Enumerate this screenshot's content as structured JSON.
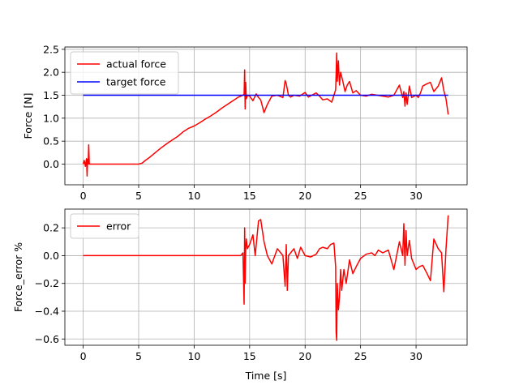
{
  "chart_data": [
    {
      "type": "line",
      "xlabel": "",
      "ylabel": "Force [N]",
      "xlim": [
        -1.65,
        34.6
      ],
      "ylim": [
        -0.45,
        2.55
      ],
      "xticks": [
        0,
        5,
        10,
        15,
        20,
        25,
        30
      ],
      "yticks": [
        0.0,
        0.5,
        1.0,
        1.5,
        2.0,
        2.5
      ],
      "xtick_labels": [
        "0",
        "5",
        "10",
        "15",
        "20",
        "25",
        "30"
      ],
      "ytick_labels": [
        "0.0",
        "0.5",
        "1.0",
        "1.5",
        "2.0",
        "2.5"
      ],
      "grid": true,
      "legend_position": "top-left",
      "series": [
        {
          "name": "actual force",
          "color": "#ff0000",
          "x": [
            0,
            0.1,
            0.2,
            0.3,
            0.35,
            0.4,
            0.45,
            0.5,
            0.55,
            0.6,
            0.7,
            1,
            2,
            3,
            4,
            5,
            5.3,
            5.6,
            6,
            6.5,
            7,
            7.5,
            8,
            8.5,
            9,
            9.5,
            10,
            10.5,
            11,
            11.5,
            12,
            12.5,
            13,
            13.5,
            14,
            14.3,
            14.5,
            14.55,
            14.6,
            14.65,
            14.7,
            14.8,
            15,
            15.3,
            15.6,
            15.8,
            16,
            16.3,
            16.6,
            17,
            17.5,
            18,
            18.2,
            18.3,
            18.5,
            18.7,
            19,
            19.5,
            20,
            20.3,
            20.6,
            21,
            21.3,
            21.6,
            22,
            22.4,
            22.6,
            22.75,
            22.8,
            22.85,
            22.9,
            23,
            23.1,
            23.2,
            23.4,
            23.6,
            23.8,
            24,
            24.3,
            24.6,
            25,
            25.5,
            26,
            26.5,
            27,
            27.5,
            28,
            28.5,
            28.8,
            28.9,
            29,
            29.1,
            29.2,
            29.4,
            29.6,
            30,
            30.2,
            30.4,
            30.6,
            31,
            31.3,
            31.6,
            32,
            32.3,
            32.5,
            32.7,
            32.9
          ],
          "y": [
            0.0,
            0.08,
            -0.05,
            0.12,
            -0.26,
            0.1,
            0.0,
            0.42,
            0.0,
            0.0,
            0.0,
            0.0,
            0.0,
            0.0,
            0.0,
            0.0,
            0.02,
            0.08,
            0.15,
            0.25,
            0.35,
            0.44,
            0.52,
            0.6,
            0.7,
            0.78,
            0.83,
            0.9,
            0.98,
            1.05,
            1.13,
            1.22,
            1.3,
            1.38,
            1.46,
            1.49,
            1.52,
            2.05,
            1.2,
            1.78,
            1.42,
            1.5,
            1.48,
            1.38,
            1.53,
            1.45,
            1.4,
            1.12,
            1.3,
            1.48,
            1.5,
            1.45,
            1.82,
            1.75,
            1.5,
            1.46,
            1.5,
            1.48,
            1.56,
            1.46,
            1.5,
            1.55,
            1.48,
            1.4,
            1.42,
            1.35,
            1.5,
            1.62,
            1.97,
            2.42,
            1.8,
            2.25,
            1.72,
            2.0,
            1.8,
            1.58,
            1.72,
            1.8,
            1.55,
            1.6,
            1.5,
            1.48,
            1.52,
            1.5,
            1.48,
            1.46,
            1.5,
            1.72,
            1.45,
            1.58,
            1.26,
            1.55,
            1.3,
            1.7,
            1.45,
            1.5,
            1.45,
            1.55,
            1.7,
            1.75,
            1.78,
            1.58,
            1.7,
            1.88,
            1.6,
            1.42,
            1.08
          ]
        },
        {
          "name": "target force",
          "color": "#0000ff",
          "x": [
            0,
            32.9
          ],
          "y": [
            1.5,
            1.5
          ]
        }
      ]
    },
    {
      "type": "line",
      "xlabel": "Time [s]",
      "ylabel": "Force_error %",
      "xlim": [
        -1.65,
        34.6
      ],
      "ylim": [
        -0.645,
        0.335
      ],
      "xticks": [
        0,
        5,
        10,
        15,
        20,
        25,
        30
      ],
      "yticks": [
        -0.6,
        -0.4,
        -0.2,
        0.0,
        0.2
      ],
      "xtick_labels": [
        "0",
        "5",
        "10",
        "15",
        "20",
        "25",
        "30"
      ],
      "ytick_labels": [
        "−0.6",
        "−0.4",
        "−0.2",
        "0.0",
        "0.2"
      ],
      "grid": true,
      "legend_position": "top-left",
      "series": [
        {
          "name": "error",
          "color": "#ff0000",
          "x": [
            0,
            5,
            10,
            14.2,
            14.4,
            14.5,
            14.55,
            14.6,
            14.65,
            14.7,
            14.8,
            15,
            15.3,
            15.5,
            15.8,
            16,
            16.3,
            16.6,
            17,
            17.5,
            18,
            18.2,
            18.3,
            18.4,
            18.5,
            18.7,
            19,
            19.3,
            19.6,
            20,
            20.5,
            21,
            21.3,
            21.6,
            22,
            22.3,
            22.6,
            22.75,
            22.8,
            22.85,
            22.9,
            23,
            23.1,
            23.2,
            23.3,
            23.5,
            23.7,
            24,
            24.3,
            24.6,
            25,
            25.5,
            26,
            26.3,
            26.6,
            27,
            27.5,
            28,
            28.5,
            28.8,
            28.9,
            29,
            29.1,
            29.2,
            29.4,
            29.6,
            30,
            30.3,
            30.6,
            31,
            31.3,
            31.6,
            32,
            32.3,
            32.5,
            32.7,
            32.9
          ],
          "y": [
            0.0,
            0.0,
            0.0,
            0.0,
            0.02,
            -0.35,
            0.2,
            -0.2,
            0.05,
            0.12,
            0.05,
            0.08,
            0.15,
            0.0,
            0.25,
            0.26,
            0.1,
            0.0,
            -0.06,
            0.05,
            0.0,
            -0.22,
            0.08,
            -0.25,
            0.0,
            0.02,
            0.05,
            -0.02,
            0.06,
            0.0,
            -0.01,
            0.01,
            0.05,
            0.06,
            0.05,
            0.08,
            0.09,
            -0.08,
            -0.55,
            -0.61,
            -0.2,
            -0.39,
            -0.3,
            -0.1,
            -0.25,
            -0.1,
            -0.2,
            -0.03,
            -0.13,
            -0.08,
            -0.02,
            0.01,
            0.02,
            0.0,
            0.04,
            0.02,
            0.04,
            -0.1,
            0.1,
            0.0,
            0.23,
            -0.07,
            0.18,
            0.0,
            0.11,
            -0.02,
            -0.1,
            -0.08,
            -0.07,
            -0.13,
            -0.18,
            0.12,
            0.05,
            0.02,
            -0.26,
            0.05,
            0.29
          ]
        }
      ]
    }
  ]
}
